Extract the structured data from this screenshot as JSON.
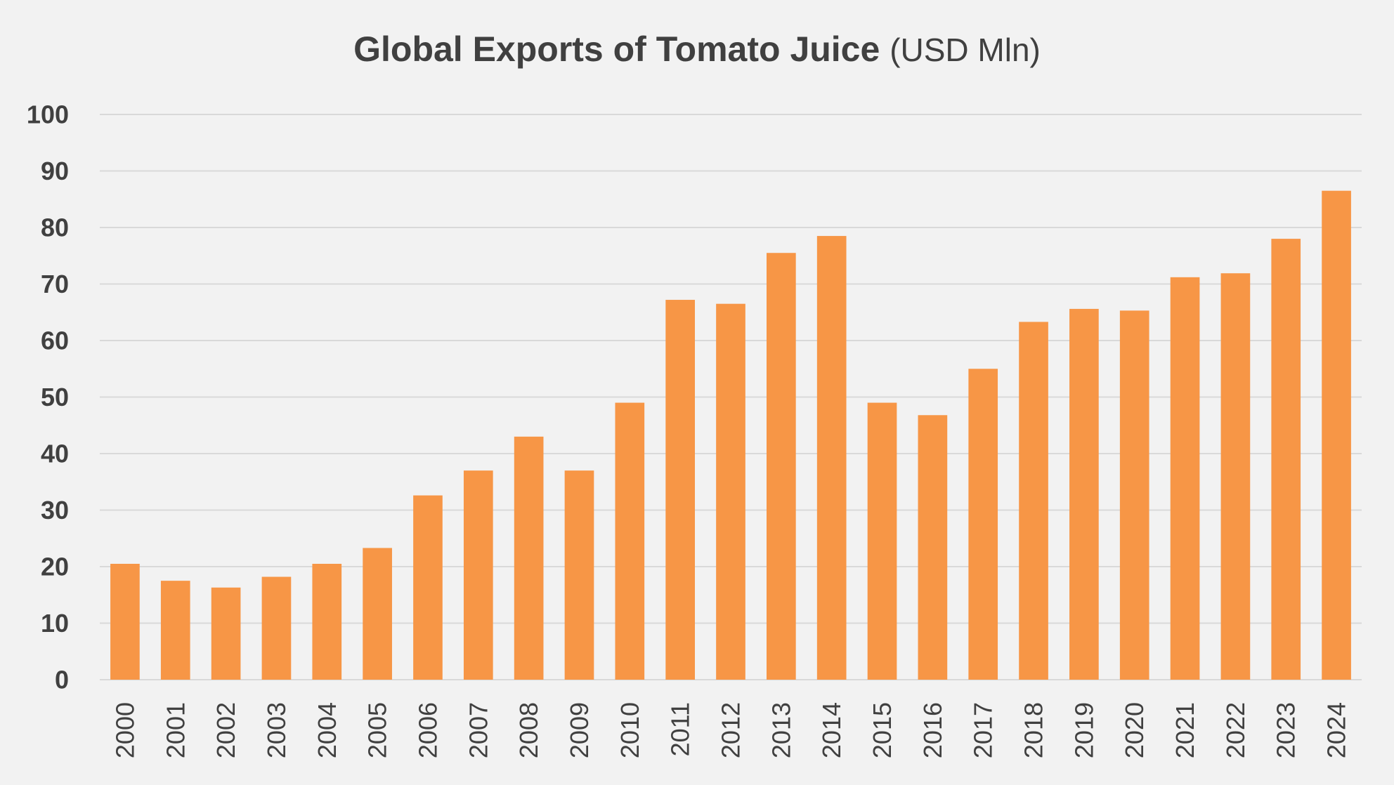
{
  "chart_data": {
    "type": "bar",
    "title": "Global Exports of Tomato Juice",
    "title_unit": "(USD Mln)",
    "xlabel": "",
    "ylabel": "",
    "categories": [
      "2000",
      "2001",
      "2002",
      "2003",
      "2004",
      "2005",
      "2006",
      "2007",
      "2008",
      "2009",
      "2010",
      "2011",
      "2012",
      "2013",
      "2014",
      "2015",
      "2016",
      "2017",
      "2018",
      "2019",
      "2020",
      "2021",
      "2022",
      "2023",
      "2024"
    ],
    "values": [
      20.5,
      17.5,
      16.3,
      18.2,
      20.5,
      23.3,
      32.6,
      37.0,
      43.0,
      37.0,
      49.0,
      67.2,
      66.5,
      75.5,
      78.5,
      49.0,
      46.8,
      55.0,
      63.3,
      65.6,
      65.3,
      71.2,
      71.9,
      78.0,
      86.5
    ],
    "ylim": [
      0,
      100
    ],
    "yticks": [
      0,
      10,
      20,
      30,
      40,
      50,
      60,
      70,
      80,
      90,
      100
    ],
    "grid": true,
    "legend": "none",
    "colors": {
      "bar": "#f79646",
      "grid": "#d9d9d9",
      "text": "#404040",
      "background": "#f2f2f2"
    }
  }
}
